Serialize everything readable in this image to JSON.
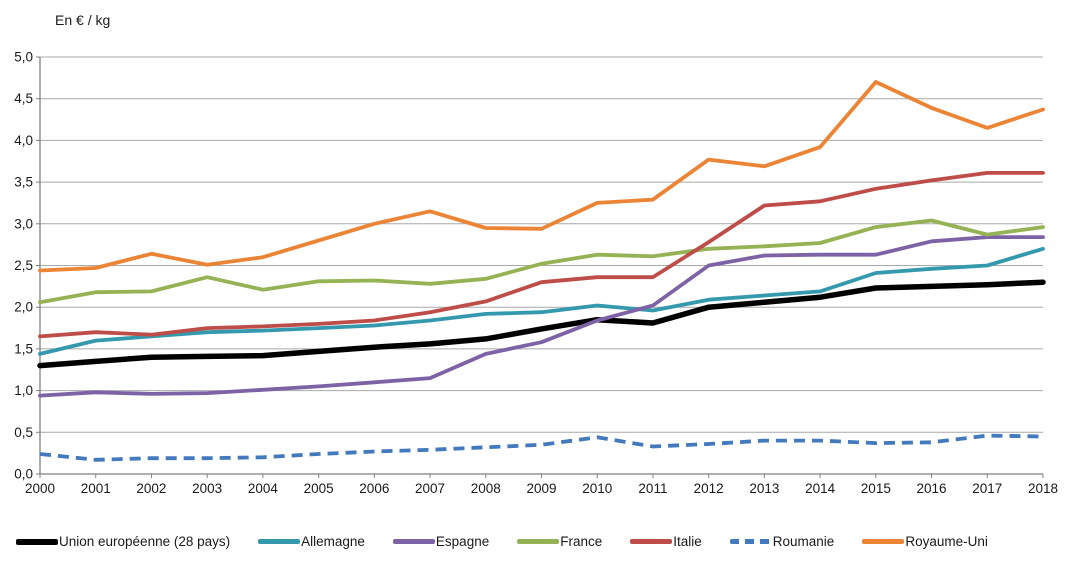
{
  "title": "En € / kg",
  "colors": {
    "background": "#ffffff",
    "gridline": "#a9a9a9",
    "axis": "#7f7f7f",
    "text": "#1a1a1a"
  },
  "chart_data": {
    "type": "line",
    "title": "En € / kg",
    "xlabel": "",
    "ylabel": "En € / kg",
    "ylim": [
      0,
      5
    ],
    "y_step": 0.5,
    "grid": "horizontal",
    "legend_position": "bottom",
    "x": [
      2000,
      2001,
      2002,
      2003,
      2004,
      2005,
      2006,
      2007,
      2008,
      2009,
      2010,
      2011,
      2012,
      2013,
      2014,
      2015,
      2016,
      2017,
      2018
    ],
    "x_tick_labels": [
      "2000",
      "2001",
      "2002",
      "2003",
      "2004",
      "2005",
      "2006",
      "2007",
      "2008",
      "2009",
      "2010",
      "2011",
      "2012",
      "2013",
      "2014",
      "2015",
      "2016",
      "2017",
      "2018"
    ],
    "y_tick_labels": [
      "0,0",
      "0,5",
      "1,0",
      "1,5",
      "2,0",
      "2,5",
      "3,0",
      "3,5",
      "4,0",
      "4,5",
      "5,0"
    ],
    "series": [
      {
        "id": "union-europeenne",
        "name": "Union européenne (28 pays)",
        "color": "#000000",
        "width": 5.5,
        "dash": null,
        "values": [
          1.3,
          1.35,
          1.4,
          1.41,
          1.42,
          1.47,
          1.52,
          1.56,
          1.62,
          1.74,
          1.85,
          1.81,
          2.0,
          2.06,
          2.12,
          2.23,
          2.25,
          2.27,
          2.3
        ]
      },
      {
        "id": "allemagne",
        "name": "Allemagne",
        "color": "#3599ae",
        "width": 3.8,
        "dash": null,
        "values": [
          1.44,
          1.6,
          1.65,
          1.7,
          1.72,
          1.75,
          1.78,
          1.84,
          1.92,
          1.94,
          2.02,
          1.96,
          2.09,
          2.14,
          2.19,
          2.41,
          2.46,
          2.5,
          2.7
        ]
      },
      {
        "id": "espagne",
        "name": "Espagne",
        "color": "#7d62a6",
        "width": 3.8,
        "dash": null,
        "values": [
          0.94,
          0.98,
          0.96,
          0.97,
          1.01,
          1.05,
          1.1,
          1.15,
          1.44,
          1.58,
          1.84,
          2.02,
          2.5,
          2.62,
          2.63,
          2.63,
          2.79,
          2.84,
          2.84
        ]
      },
      {
        "id": "france",
        "name": "France",
        "color": "#95b254",
        "width": 3.8,
        "dash": null,
        "values": [
          2.06,
          2.18,
          2.19,
          2.36,
          2.21,
          2.31,
          2.32,
          2.28,
          2.34,
          2.52,
          2.63,
          2.61,
          2.7,
          2.73,
          2.77,
          2.96,
          3.04,
          2.87,
          2.96
        ]
      },
      {
        "id": "italie",
        "name": "Italie",
        "color": "#be4c48",
        "width": 3.8,
        "dash": null,
        "values": [
          1.65,
          1.7,
          1.67,
          1.75,
          1.77,
          1.8,
          1.84,
          1.94,
          2.07,
          2.3,
          2.36,
          2.36,
          2.78,
          3.22,
          3.27,
          3.42,
          3.52,
          3.61,
          3.61
        ]
      },
      {
        "id": "roumanie",
        "name": "Roumanie",
        "color": "#4379bd",
        "width": 3.8,
        "dash": "11 7",
        "values": [
          0.24,
          0.17,
          0.19,
          0.19,
          0.2,
          0.24,
          0.27,
          0.29,
          0.32,
          0.35,
          0.44,
          0.33,
          0.36,
          0.4,
          0.4,
          0.37,
          0.38,
          0.46,
          0.45
        ]
      },
      {
        "id": "royaume-uni",
        "name": "Royaume-Uni",
        "color": "#eb8435",
        "width": 3.8,
        "dash": null,
        "values": [
          2.44,
          2.47,
          2.64,
          2.51,
          2.6,
          2.8,
          3.0,
          3.15,
          2.95,
          2.94,
          3.25,
          3.29,
          3.77,
          3.69,
          3.92,
          4.7,
          4.39,
          4.15,
          4.37
        ]
      }
    ]
  }
}
